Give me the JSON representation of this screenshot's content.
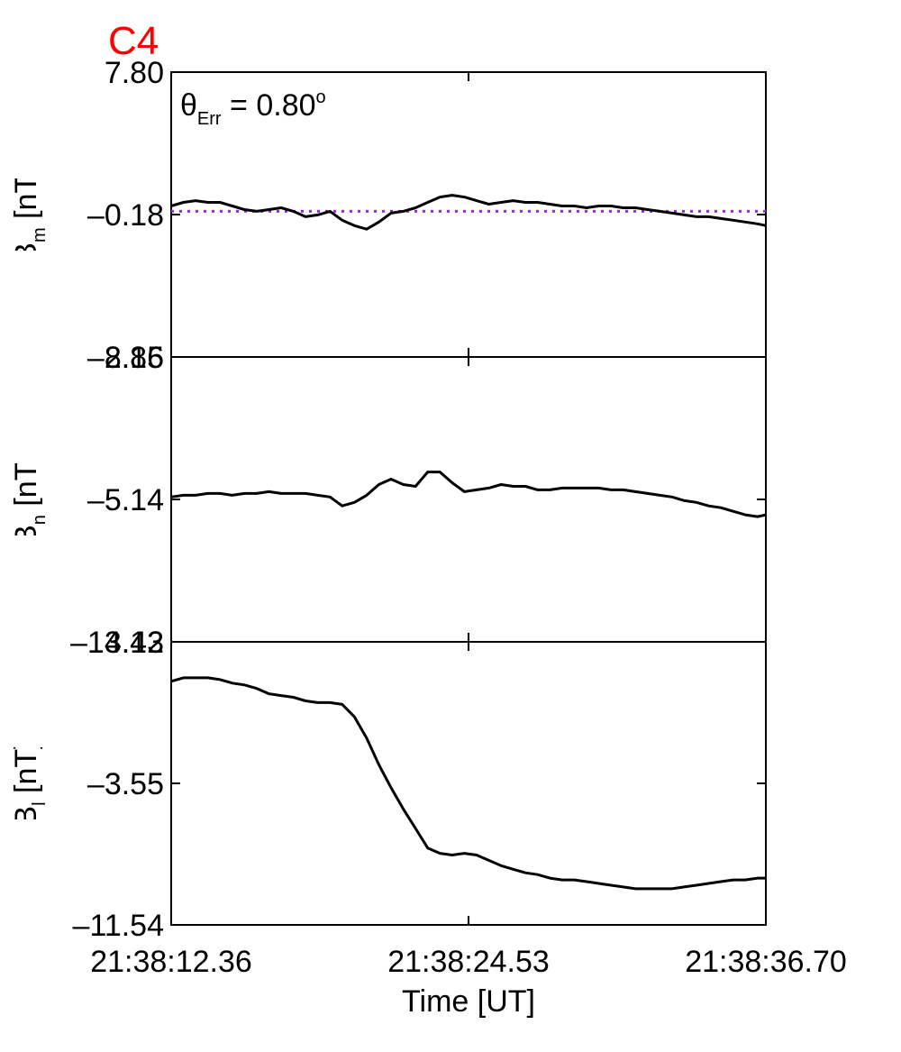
{
  "title": "C4",
  "colors": {
    "title": "#ff0000",
    "trace": "#000000",
    "reference": "#a020f0",
    "axes": "#000000"
  },
  "annotation": {
    "theta": "θ",
    "sub": "Err",
    "value": " =  0.80",
    "degree": "o"
  },
  "xlabel": "Time [UT]",
  "chart_data": [
    {
      "type": "line",
      "panel": "Bm",
      "ylabel": {
        "main": "B",
        "sub": "m",
        "unit": " [nT]"
      },
      "ylim": [
        -8.16,
        7.8
      ],
      "yticks": [
        "7.80",
        "–0.18",
        "–8.16"
      ],
      "reference_line": {
        "y": 0.0,
        "style": "dotted"
      },
      "x": [
        0,
        0.5,
        1.0,
        1.5,
        2.0,
        2.5,
        3.0,
        3.5,
        4.0,
        4.5,
        5.0,
        5.5,
        6.0,
        6.5,
        7.0,
        7.5,
        8.0,
        8.5,
        9.0,
        9.5,
        10.0,
        10.5,
        11.0,
        11.5,
        12.0,
        12.5,
        13.0,
        13.5,
        14.0,
        14.5,
        15.0,
        15.5,
        16.0,
        16.5,
        17.0,
        17.5,
        18.0,
        18.5,
        19.0,
        19.5,
        20.0,
        20.5,
        21.0,
        21.5,
        22.0,
        22.5,
        23.0,
        23.5,
        24.0,
        24.34
      ],
      "values": [
        0.3,
        0.5,
        0.6,
        0.5,
        0.5,
        0.3,
        0.1,
        0.0,
        0.1,
        0.2,
        0.0,
        -0.3,
        -0.2,
        0.0,
        -0.5,
        -0.8,
        -1.0,
        -0.6,
        -0.1,
        0.0,
        0.2,
        0.5,
        0.8,
        0.9,
        0.8,
        0.6,
        0.4,
        0.5,
        0.6,
        0.5,
        0.5,
        0.4,
        0.3,
        0.3,
        0.2,
        0.3,
        0.3,
        0.2,
        0.2,
        0.1,
        0.0,
        -0.1,
        -0.2,
        -0.3,
        -0.3,
        -0.4,
        -0.5,
        -0.6,
        -0.7,
        -0.8
      ]
    },
    {
      "type": "line",
      "panel": "Bn",
      "ylabel": {
        "main": "B",
        "sub": "n",
        "unit": " [nT]"
      },
      "ylim": [
        -13.12,
        2.85
      ],
      "yticks": [
        "2.85",
        "–5.14",
        "–13.12"
      ],
      "x": [
        0,
        0.5,
        1.0,
        1.5,
        2.0,
        2.5,
        3.0,
        3.5,
        4.0,
        4.5,
        5.0,
        5.5,
        6.0,
        6.5,
        7.0,
        7.5,
        8.0,
        8.5,
        9.0,
        9.5,
        10.0,
        10.5,
        11.0,
        11.5,
        12.0,
        12.5,
        13.0,
        13.5,
        14.0,
        14.5,
        15.0,
        15.5,
        16.0,
        16.5,
        17.0,
        17.5,
        18.0,
        18.5,
        19.0,
        19.5,
        20.0,
        20.5,
        21.0,
        21.5,
        22.0,
        22.5,
        23.0,
        23.5,
        24.0,
        24.34
      ],
      "values": [
        -5.0,
        -4.9,
        -4.9,
        -4.8,
        -4.8,
        -4.9,
        -4.8,
        -4.8,
        -4.7,
        -4.8,
        -4.8,
        -4.8,
        -4.9,
        -5.0,
        -5.5,
        -5.3,
        -4.9,
        -4.3,
        -4.0,
        -4.3,
        -4.4,
        -3.6,
        -3.6,
        -4.2,
        -4.7,
        -4.6,
        -4.5,
        -4.3,
        -4.4,
        -4.4,
        -4.6,
        -4.6,
        -4.5,
        -4.5,
        -4.5,
        -4.5,
        -4.6,
        -4.6,
        -4.7,
        -4.8,
        -4.9,
        -5.0,
        -5.2,
        -5.3,
        -5.5,
        -5.6,
        -5.8,
        -6.0,
        -6.1,
        -6.0
      ]
    },
    {
      "type": "line",
      "panel": "Bl",
      "ylabel": {
        "main": "B",
        "sub": "l",
        "unit": " [nT]"
      },
      "ylim": [
        -11.54,
        4.43
      ],
      "yticks": [
        "4.43",
        "–3.55",
        "–11.54"
      ],
      "x": [
        0,
        0.5,
        1.0,
        1.5,
        2.0,
        2.5,
        3.0,
        3.5,
        4.0,
        4.5,
        5.0,
        5.5,
        6.0,
        6.5,
        7.0,
        7.5,
        8.0,
        8.5,
        9.0,
        9.5,
        10.0,
        10.5,
        11.0,
        11.5,
        12.0,
        12.5,
        13.0,
        13.5,
        14.0,
        14.5,
        15.0,
        15.5,
        16.0,
        16.5,
        17.0,
        17.5,
        18.0,
        18.5,
        19.0,
        19.5,
        20.0,
        20.5,
        21.0,
        21.5,
        22.0,
        22.5,
        23.0,
        23.5,
        24.0,
        24.34
      ],
      "values": [
        2.2,
        2.4,
        2.4,
        2.4,
        2.3,
        2.1,
        2.0,
        1.8,
        1.5,
        1.4,
        1.3,
        1.1,
        1.0,
        1.0,
        0.9,
        0.2,
        -1.0,
        -2.5,
        -3.8,
        -5.0,
        -6.1,
        -7.2,
        -7.5,
        -7.6,
        -7.5,
        -7.6,
        -7.9,
        -8.2,
        -8.4,
        -8.6,
        -8.7,
        -8.9,
        -9.0,
        -9.0,
        -9.1,
        -9.2,
        -9.3,
        -9.4,
        -9.5,
        -9.5,
        -9.5,
        -9.5,
        -9.4,
        -9.3,
        -9.2,
        -9.1,
        -9.0,
        -9.0,
        -8.9,
        -8.9
      ]
    }
  ],
  "x_axis": {
    "xlim": [
      0,
      24.34
    ],
    "ticks": [
      {
        "x": 0,
        "label": "21:38:12.36"
      },
      {
        "x": 12.17,
        "label": "21:38:24.53"
      },
      {
        "x": 24.34,
        "label": "21:38:36.70"
      }
    ]
  }
}
